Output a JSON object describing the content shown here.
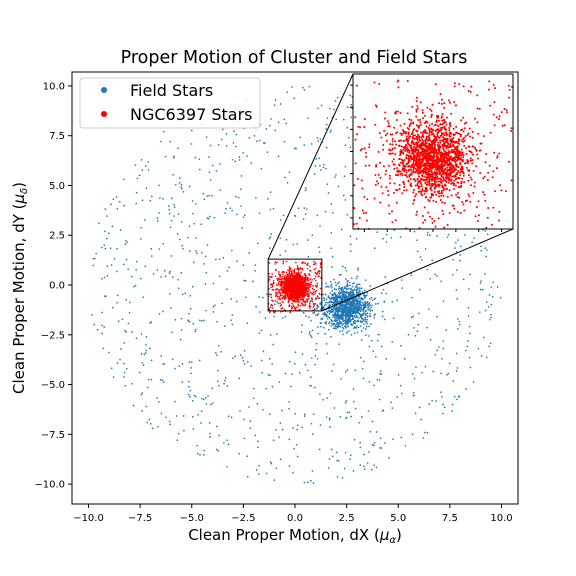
{
  "chart_data": {
    "type": "scatter",
    "title": "Proper Motion of Cluster and Field Stars",
    "xlabel_main": "Clean Proper Motion, dX (",
    "xlabel_sym": "μ",
    "xlabel_sub": "α",
    "xlabel_end": ")",
    "ylabel_main": "Clean Proper Motion, dY (",
    "ylabel_sym": "μ",
    "ylabel_sub": "δ",
    "ylabel_end": ")",
    "xlim": [
      -10.8,
      10.8
    ],
    "ylim": [
      -11.0,
      10.7
    ],
    "xticks": [
      -10.0,
      -7.5,
      -5.0,
      -2.5,
      0.0,
      2.5,
      5.0,
      7.5,
      10.0
    ],
    "yticks": [
      -10.0,
      -7.5,
      -5.0,
      -2.5,
      0.0,
      2.5,
      5.0,
      7.5,
      10.0
    ],
    "xtick_labels": [
      "−10.0",
      "−7.5",
      "−5.0",
      "−2.5",
      "0.0",
      "2.5",
      "5.0",
      "7.5",
      "10.0"
    ],
    "ytick_labels": [
      "−10.0",
      "−7.5",
      "−5.0",
      "−2.5",
      "0.0",
      "2.5",
      "5.0",
      "7.5",
      "10.0"
    ],
    "grid": false,
    "legend_placement": "top-left",
    "series": [
      {
        "name": "Field Stars",
        "color": "#1f77b4",
        "components": [
          {
            "kind": "uniform-disk",
            "center": [
              0.0,
              0.0
            ],
            "radius": 10.0,
            "count": 1100
          },
          {
            "kind": "gaussian-clump",
            "center": [
              2.5,
              -1.1
            ],
            "sigma": 0.55,
            "count": 1100
          }
        ]
      },
      {
        "name": "NGC6397 Stars",
        "color": "#ff0000",
        "components": [
          {
            "kind": "gaussian-clump",
            "center": [
              0.0,
              -0.1
            ],
            "sigma": 0.3,
            "count": 1600
          },
          {
            "kind": "uniform-box",
            "center": [
              0.0,
              -0.1
            ],
            "half_width": 1.3,
            "count": 250
          }
        ]
      }
    ],
    "inset": {
      "xlim": [
        -1.3,
        1.3
      ],
      "ylim": [
        -1.3,
        1.3
      ],
      "placement": "top-right",
      "zoom_box_shown": true
    }
  }
}
